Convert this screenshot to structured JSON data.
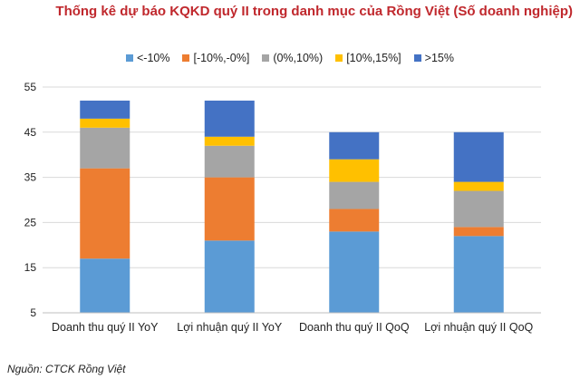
{
  "title": "Thống kê dự báo KQKD quý II trong danh mục của Rồng Việt (Số doanh nghiệp)",
  "source": "Nguồn: CTCK Rồng Việt",
  "chart_data": {
    "type": "bar",
    "stacked": true,
    "categories": [
      "Doanh thu quý II YoY",
      "Lợi nhuận quý II YoY",
      "Doanh thu quý II QoQ",
      "Lợi nhuận quý II QoQ"
    ],
    "series": [
      {
        "name": "<-10%",
        "color": "#5b9bd5",
        "values": [
          12,
          16,
          18,
          17
        ]
      },
      {
        "name": "[-10%,-0%]",
        "color": "#ed7d31",
        "values": [
          20,
          14,
          5,
          2
        ]
      },
      {
        "name": "(0%,10%)",
        "color": "#a5a5a5",
        "values": [
          9,
          7,
          6,
          8
        ]
      },
      {
        "name": "[10%,15%]",
        "color": "#ffc000",
        "values": [
          2,
          2,
          5,
          2
        ]
      },
      {
        "name": ">15%",
        "color": "#4472c4",
        "values": [
          4,
          8,
          6,
          11
        ]
      }
    ],
    "ylim": [
      5,
      55
    ],
    "yticks": [
      5,
      15,
      25,
      35,
      45,
      55
    ],
    "grid": true,
    "legend": "top-center"
  }
}
